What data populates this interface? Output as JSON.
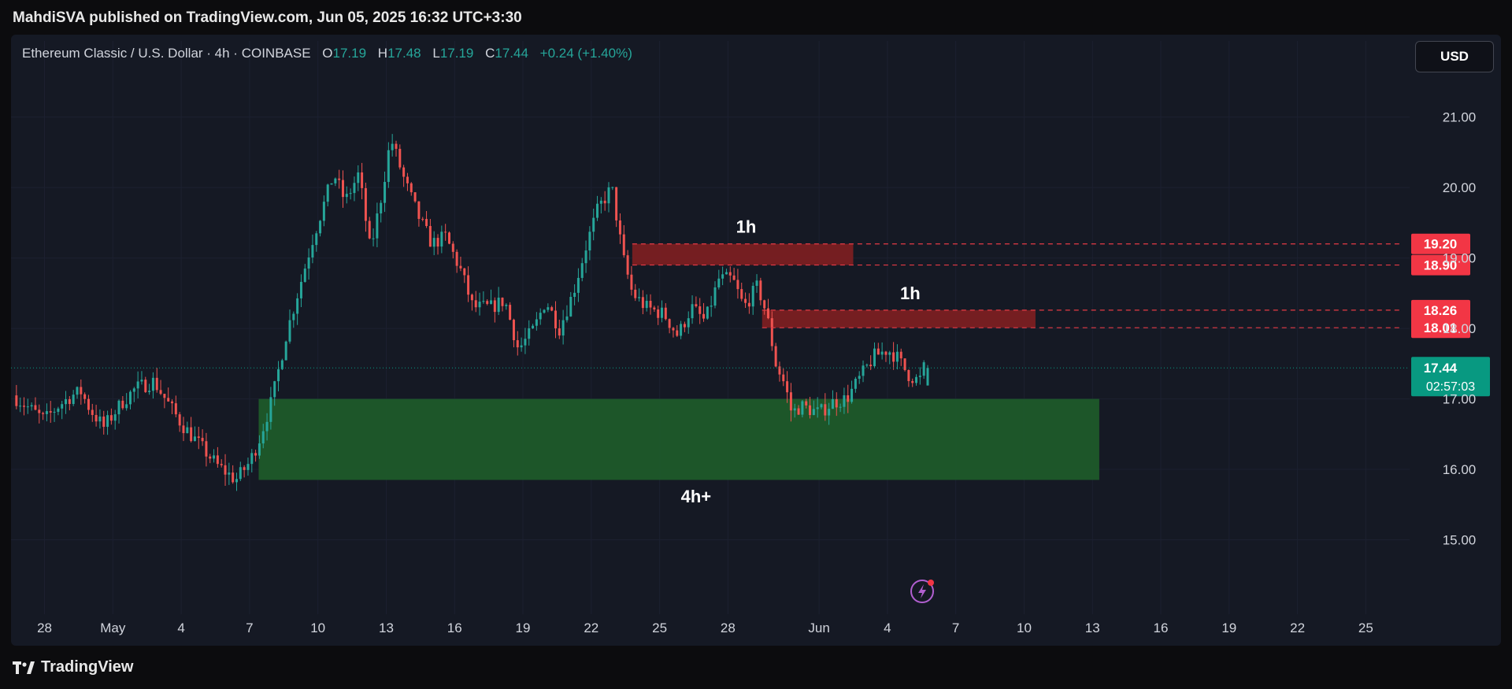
{
  "header": {
    "published_by": "MahdiSVA published on TradingView.com, Jun 05, 2025 16:32 UTC+3:30"
  },
  "legend": {
    "symbol": "Ethereum Classic / U.S. Dollar · 4h · COINBASE",
    "o_label": "O",
    "o_value": "17.19",
    "h_label": "H",
    "h_value": "17.48",
    "l_label": "L",
    "l_value": "17.19",
    "c_label": "C",
    "c_value": "17.44",
    "change": "+0.24 (+1.40%)"
  },
  "currency_button": "USD",
  "footer": {
    "brand": "TradingView",
    "logo_icon": "tradingview-logo-icon"
  },
  "chart_data": {
    "type": "candlestick",
    "symbol": "Ethereum Classic / U.S. Dollar",
    "interval": "4h",
    "exchange": "COINBASE",
    "currency": "USD",
    "ylim": [
      14.0,
      21.6
    ],
    "y_ticks": [
      "15.00",
      "16.00",
      "17.00",
      "18.00",
      "19.00",
      "20.00",
      "21.00"
    ],
    "x_ticks": [
      {
        "label": "28",
        "day": 0
      },
      {
        "label": "May",
        "day": 3
      },
      {
        "label": "4",
        "day": 6
      },
      {
        "label": "7",
        "day": 9
      },
      {
        "label": "10",
        "day": 12
      },
      {
        "label": "13",
        "day": 15
      },
      {
        "label": "16",
        "day": 18
      },
      {
        "label": "19",
        "day": 21
      },
      {
        "label": "22",
        "day": 24
      },
      {
        "label": "25",
        "day": 27
      },
      {
        "label": "28",
        "day": 30
      },
      {
        "label": "Jun",
        "day": 34
      },
      {
        "label": "4",
        "day": 37
      },
      {
        "label": "7",
        "day": 40
      },
      {
        "label": "10",
        "day": 43
      },
      {
        "label": "13",
        "day": 46
      },
      {
        "label": "16",
        "day": 49
      },
      {
        "label": "19",
        "day": 52
      },
      {
        "label": "22",
        "day": 55
      },
      {
        "label": "25",
        "day": 58
      }
    ],
    "x_range_days": [
      -1.47,
      59.75
    ],
    "price_path": [
      [
        -1.4,
        17.05
      ],
      [
        0.0,
        16.7
      ],
      [
        0.6,
        16.9
      ],
      [
        1.2,
        17.05
      ],
      [
        1.6,
        17.1
      ],
      [
        2.0,
        16.85
      ],
      [
        2.6,
        16.6
      ],
      [
        3.4,
        16.95
      ],
      [
        4.0,
        17.15
      ],
      [
        4.8,
        17.25
      ],
      [
        5.4,
        16.95
      ],
      [
        6.0,
        16.65
      ],
      [
        6.8,
        16.35
      ],
      [
        7.6,
        16.05
      ],
      [
        8.4,
        15.85
      ],
      [
        9.0,
        16.1
      ],
      [
        9.4,
        16.4
      ],
      [
        10.0,
        17.0
      ],
      [
        10.6,
        17.9
      ],
      [
        11.2,
        18.6
      ],
      [
        11.8,
        19.3
      ],
      [
        12.3,
        19.8
      ],
      [
        12.7,
        20.2
      ],
      [
        13.2,
        19.8
      ],
      [
        13.8,
        20.2
      ],
      [
        14.3,
        19.1
      ],
      [
        14.8,
        19.9
      ],
      [
        15.2,
        20.7
      ],
      [
        15.8,
        20.1
      ],
      [
        16.4,
        19.6
      ],
      [
        17.0,
        19.2
      ],
      [
        17.6,
        19.3
      ],
      [
        18.3,
        18.8
      ],
      [
        18.8,
        18.3
      ],
      [
        19.6,
        18.3
      ],
      [
        20.2,
        18.4
      ],
      [
        20.8,
        17.7
      ],
      [
        21.5,
        18.0
      ],
      [
        22.0,
        18.4
      ],
      [
        22.6,
        18.0
      ],
      [
        23.2,
        18.5
      ],
      [
        23.8,
        19.2
      ],
      [
        24.3,
        19.7
      ],
      [
        24.9,
        20.0
      ],
      [
        25.4,
        19.0
      ],
      [
        25.8,
        18.5
      ],
      [
        26.4,
        18.3
      ],
      [
        27.2,
        18.2
      ],
      [
        27.8,
        17.9
      ],
      [
        28.4,
        18.3
      ],
      [
        29.0,
        18.1
      ],
      [
        29.6,
        18.7
      ],
      [
        30.2,
        18.7
      ],
      [
        30.7,
        18.3
      ],
      [
        31.3,
        18.6
      ],
      [
        31.7,
        18.2
      ],
      [
        32.1,
        17.5
      ],
      [
        32.5,
        17.2
      ],
      [
        32.8,
        16.8
      ],
      [
        33.2,
        16.9
      ],
      [
        34.0,
        16.8
      ],
      [
        34.6,
        16.95
      ],
      [
        35.2,
        17.0
      ],
      [
        35.8,
        17.3
      ],
      [
        36.4,
        17.6
      ],
      [
        37.0,
        17.7
      ],
      [
        37.4,
        17.6
      ],
      [
        37.9,
        17.35
      ],
      [
        38.4,
        17.25
      ],
      [
        38.6,
        17.44
      ]
    ],
    "zones": [
      {
        "label": "1h",
        "type": "supply",
        "top": 19.2,
        "bottom": 18.9,
        "from_day": 25.8,
        "to_day": 35.5,
        "label_day": 30.8,
        "line_to_day": 59.6
      },
      {
        "label": "1h",
        "type": "supply",
        "top": 18.26,
        "bottom": 18.01,
        "from_day": 31.5,
        "to_day": 43.5,
        "label_day": 38.0,
        "line_to_day": 59.6
      },
      {
        "label": "4h+",
        "type": "demand",
        "top": 17.0,
        "bottom": 15.85,
        "from_day": 9.4,
        "to_day": 46.3,
        "label_day": 28.6,
        "label_price": 15.6
      }
    ],
    "price_labels": [
      "19.20",
      "18.90",
      "18.26",
      "18.01"
    ],
    "last_price": {
      "value": 17.44,
      "label": "17.44",
      "countdown": "02:57:03"
    },
    "colors": {
      "up": "#26a69a",
      "down": "#ef5350",
      "supply_zone": "#7a1f22",
      "demand_zone": "#1e5a2a",
      "supply_line": "#e53a45",
      "price_tag_red": "#f23645",
      "price_tag_green": "#089981",
      "background": "#151924",
      "grid": "#1c2030",
      "axis_text": "#d1d4dc"
    }
  }
}
